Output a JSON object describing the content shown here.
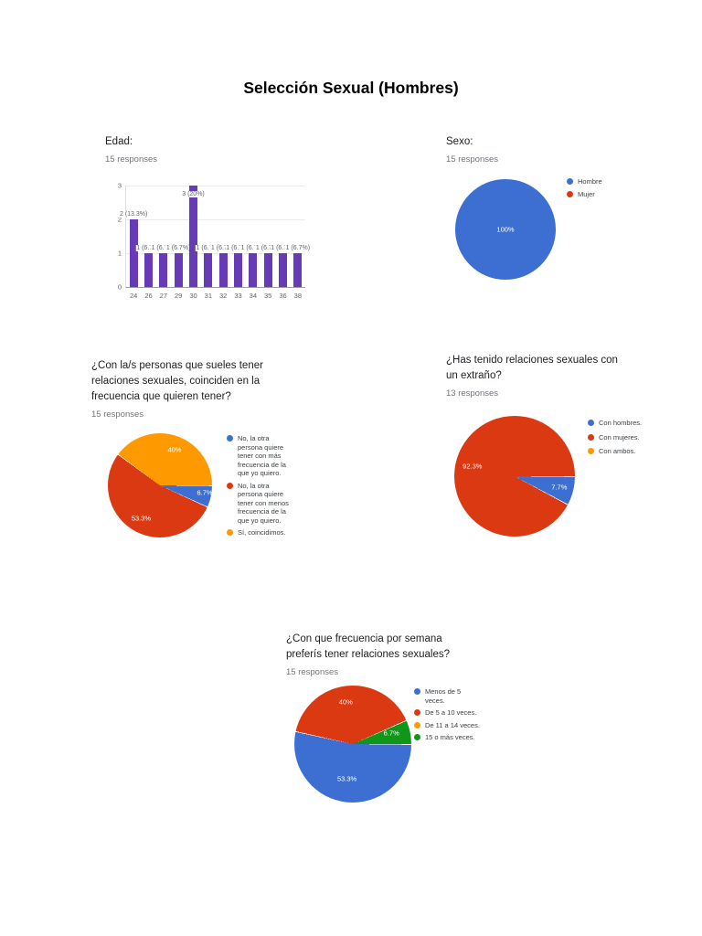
{
  "page_title": "Selección Sexual (Hombres)",
  "palette": {
    "blue": "#3D6FD3",
    "red": "#DB3912",
    "yellow": "#FF9900",
    "green": "#109618",
    "purple": "#673AB7"
  },
  "chart_data": [
    {
      "type": "bar",
      "title": "Edad:",
      "responses": "15 responses",
      "color": "purple",
      "categories": [
        "24",
        "26",
        "27",
        "29",
        "30",
        "31",
        "32",
        "33",
        "34",
        "35",
        "36",
        "38"
      ],
      "values": [
        2,
        1,
        1,
        1,
        3,
        1,
        1,
        1,
        1,
        1,
        1,
        1
      ],
      "annotations": [
        "2 (13.3%)",
        "1 (6.7%)",
        "1 (6.7%)",
        "1 (6.7%)",
        "3 (20%)",
        "1 (6.7%)",
        "1 (6.7%)",
        "1 (6.7%)",
        "1 (6.7%)",
        "1 (6.7%)",
        "1 (6.7%)",
        "1 (6.7%)"
      ],
      "y_ticks": [
        0,
        1,
        2,
        3
      ],
      "ylim": [
        0,
        3
      ],
      "grid": true,
      "xlabel": "",
      "ylabel": ""
    },
    {
      "type": "pie",
      "title": "Sexo:",
      "responses": "15 responses",
      "start_angle": 90,
      "legend_position": "right",
      "slices": [
        {
          "label": "Hombre",
          "pct": 100,
          "color": "blue",
          "pct_label": "100%",
          "lx": 50,
          "ly": 50
        },
        {
          "label": "Mujer",
          "pct": 0,
          "color": "red"
        }
      ]
    },
    {
      "type": "pie",
      "title": [
        "¿Con la/s personas que sueles tener",
        "relaciones sexuales, coinciden en la",
        "frecuencia que quieren tener?"
      ],
      "responses": "15 responses",
      "start_angle": 90,
      "legend_position": "right",
      "slices": [
        {
          "label": [
            "No, la otra",
            "persona quiere",
            "tener con más",
            "frecuencia de la",
            "que yo quiero."
          ],
          "pct": 6.7,
          "color": "blue",
          "pct_label": "6.7%",
          "lx": 93,
          "ly": 57
        },
        {
          "label": [
            "No, la otra",
            "persona quiere",
            "tener con menos",
            "frecuencia de la",
            "que yo quiero."
          ],
          "pct": 53.3,
          "color": "red",
          "pct_label": "53.3%",
          "lx": 32,
          "ly": 82
        },
        {
          "label": [
            "Sí, coincidimos."
          ],
          "pct": 40,
          "color": "yellow",
          "pct_label": "40%",
          "lx": 64,
          "ly": 16
        }
      ]
    },
    {
      "type": "pie",
      "title": [
        "¿Has tenido relaciones sexuales con",
        "un extraño?"
      ],
      "responses": "13 responses",
      "start_angle": 90,
      "legend_position": "right",
      "slices": [
        {
          "label": [
            "Con hombres."
          ],
          "pct": 7.7,
          "color": "blue",
          "pct_label": "7.7%",
          "lx": 87,
          "ly": 59
        },
        {
          "label": [
            "Con mujeres."
          ],
          "pct": 92.3,
          "color": "red",
          "pct_label": "92.3%",
          "lx": 15,
          "ly": 42
        },
        {
          "label": [
            "Con ambos."
          ],
          "pct": 0,
          "color": "yellow"
        }
      ]
    },
    {
      "type": "pie",
      "title": [
        "¿Con que frecuencia por semana",
        "preferís tener relaciones sexuales?"
      ],
      "responses": "15 responses",
      "start_angle": 90,
      "legend_position": "right",
      "slices": [
        {
          "label": [
            "Menos de 5",
            "veces."
          ],
          "pct": 53.3,
          "color": "blue",
          "pct_label": "53.3%",
          "lx": 45,
          "ly": 80
        },
        {
          "label": [
            "De 5 a 10 veces."
          ],
          "pct": 40,
          "color": "red",
          "pct_label": "40%",
          "lx": 44,
          "ly": 14
        },
        {
          "label": [
            "De 11 a 14 veces."
          ],
          "pct": 0,
          "color": "yellow"
        },
        {
          "label": [
            "15 o más veces."
          ],
          "pct": 6.7,
          "color": "green",
          "pct_label": "6.7%",
          "lx": 83,
          "ly": 41
        }
      ]
    }
  ]
}
